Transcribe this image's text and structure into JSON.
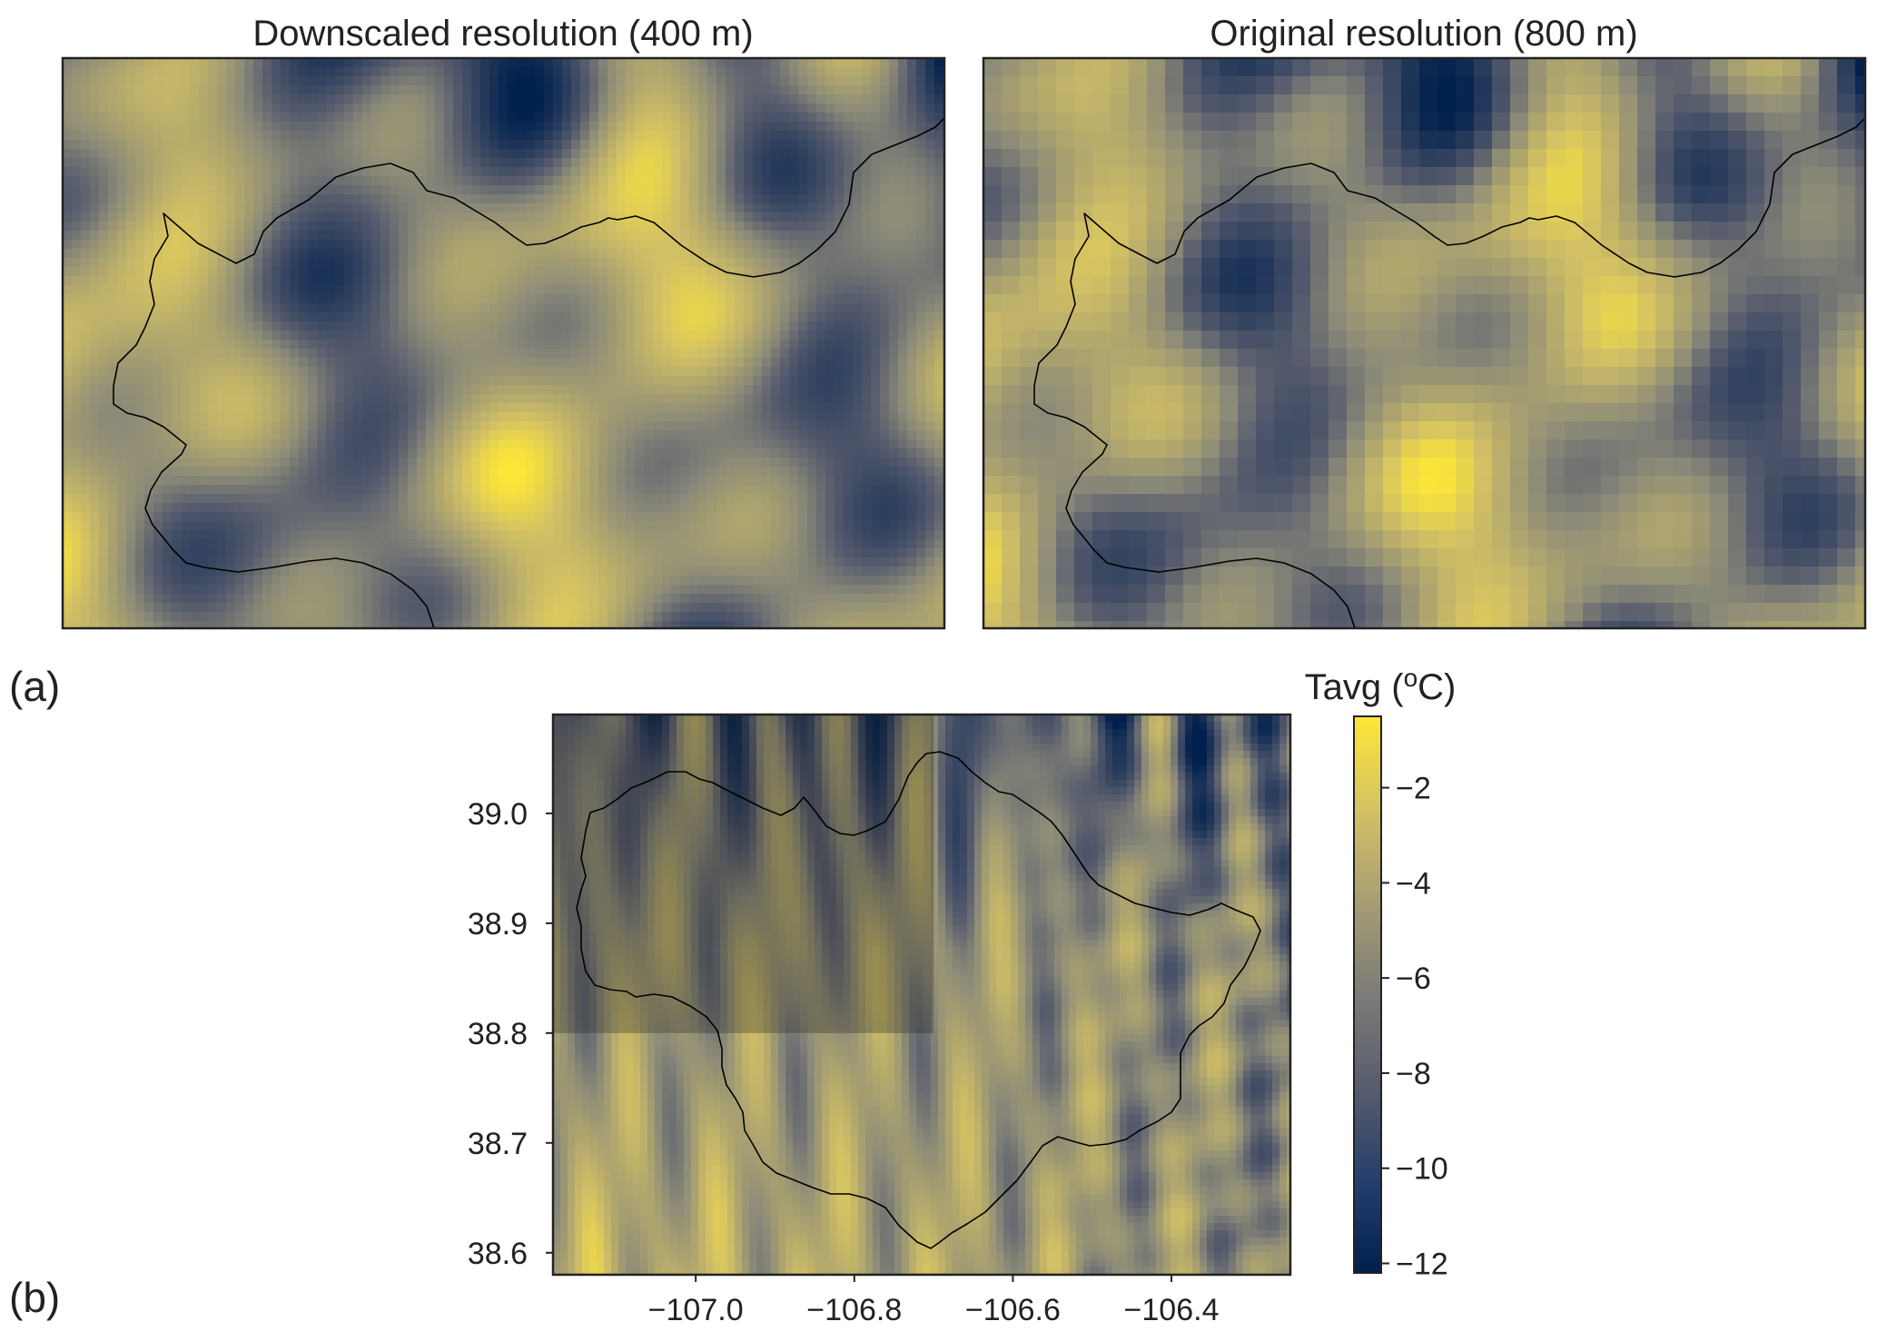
{
  "chart_data": [
    {
      "type": "heatmap",
      "panel_label": "(a)",
      "title": "Downscaled resolution (400 m)",
      "grid_resolution_m": 400,
      "variable": "Tavg",
      "region": "zoomed subregion (upper-left box of panel b)",
      "colorscale": "cividis",
      "vmin": -12,
      "vmax": -0.5,
      "shows_basin_outline": true,
      "axes_ticks_shown": false
    },
    {
      "type": "heatmap",
      "title": "Original resolution (800 m)",
      "grid_resolution_m": 800,
      "variable": "Tavg",
      "colorscale": "cividis",
      "vmin": -12,
      "vmax": -0.5,
      "shows_basin_outline": true,
      "axes_ticks_shown": false
    },
    {
      "type": "heatmap",
      "panel_label": "(b)",
      "variable": "Tavg",
      "colorscale": "cividis",
      "xlim": [
        -107.18,
        -106.25
      ],
      "ylim": [
        38.58,
        39.09
      ],
      "x_ticks": [
        -107.0,
        -106.8,
        -106.6,
        -106.4
      ],
      "x_tick_labels": [
        "−107.0",
        "−106.8",
        "−106.6",
        "−106.4"
      ],
      "y_ticks": [
        38.6,
        38.7,
        38.8,
        38.9,
        39.0
      ],
      "y_tick_labels": [
        "38.6",
        "38.7",
        "38.8",
        "38.9",
        "39.0"
      ],
      "highlight_box": {
        "lon": [
          -107.18,
          -106.7
        ],
        "lat": [
          38.8,
          39.09
        ]
      },
      "shows_basin_outline": true
    }
  ],
  "colorbar": {
    "label_prefix": "Tavg (",
    "label_super": "o",
    "label_suffix": "C)",
    "vmin": -12.2,
    "vmax": -0.5,
    "ticks": [
      -2,
      -4,
      -6,
      -8,
      -10,
      -12
    ],
    "tick_labels": [
      "−2",
      "−4",
      "−6",
      "−8",
      "−10",
      "−12"
    ]
  },
  "colors": {
    "high": "#fde737",
    "mid": "#8b8a78",
    "low": "#00204d"
  }
}
